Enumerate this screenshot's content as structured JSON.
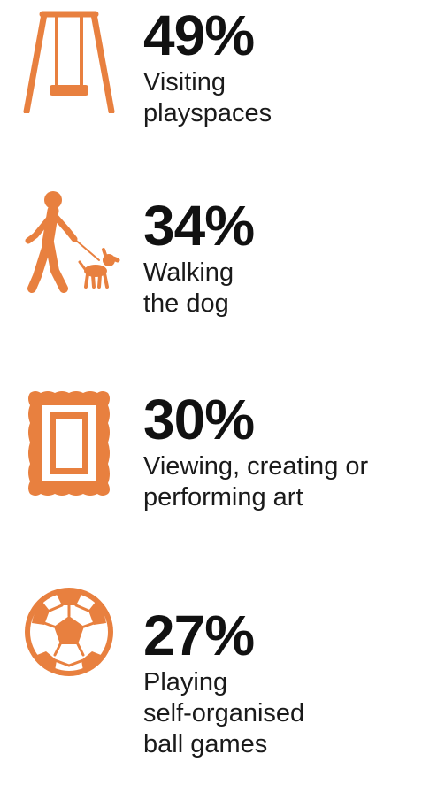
{
  "accent_color": "#E8803F",
  "items": [
    {
      "icon": "swing-icon",
      "percent": "49%",
      "value": 49,
      "label_lines": [
        "Visiting",
        "playspaces"
      ]
    },
    {
      "icon": "dog-walker-icon",
      "percent": "34%",
      "value": 34,
      "label_lines": [
        "Walking",
        "the dog"
      ]
    },
    {
      "icon": "picture-frame-icon",
      "percent": "30%",
      "value": 30,
      "label_lines": [
        "Viewing, creating or",
        "performing art"
      ]
    },
    {
      "icon": "soccer-ball-icon",
      "percent": "27%",
      "value": 27,
      "label_lines": [
        "Playing",
        "self-organised",
        "ball games"
      ]
    }
  ]
}
